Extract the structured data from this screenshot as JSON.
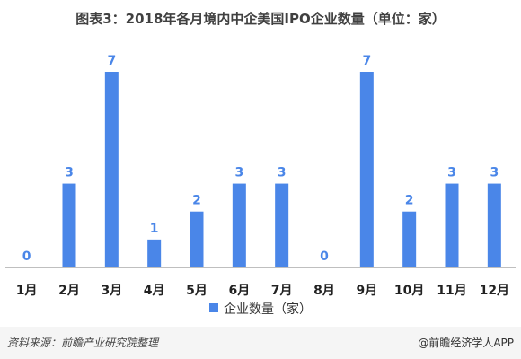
{
  "title": "图表3：2018年各月境内中企美国IPO企业数量（单位：家）",
  "legend_label": "企业数量（家）",
  "source": "资料来源：前瞻产业研究院整理",
  "brand": "@前瞻经济学人APP",
  "colors": {
    "bar": "#4a86e8",
    "axis": "#bfbfbf"
  },
  "chart_data": {
    "type": "bar",
    "title": "图表3：2018年各月境内中企美国IPO企业数量（单位：家）",
    "categories": [
      "1月",
      "2月",
      "3月",
      "4月",
      "5月",
      "6月",
      "7月",
      "8月",
      "9月",
      "10月",
      "11月",
      "12月"
    ],
    "series": [
      {
        "name": "企业数量（家）",
        "values": [
          0,
          3,
          7,
          1,
          2,
          3,
          3,
          0,
          7,
          2,
          3,
          3
        ]
      }
    ],
    "ylim": [
      0,
      7
    ],
    "data_labels": true,
    "grid": false,
    "legend": "bottom"
  }
}
